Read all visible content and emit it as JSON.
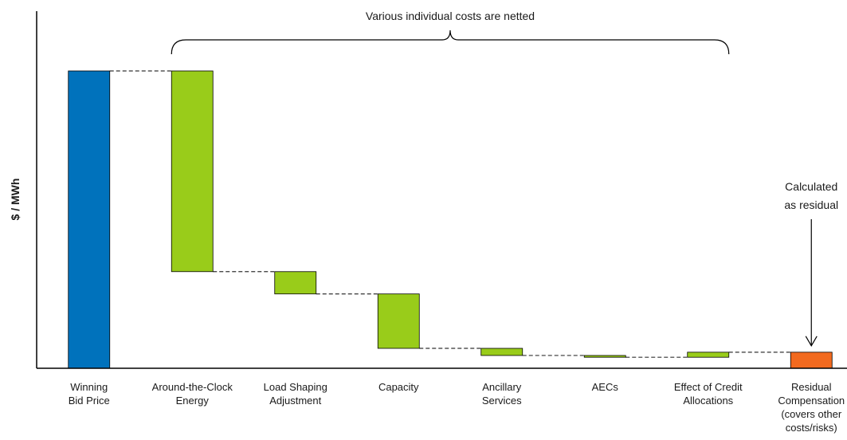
{
  "chart_data": {
    "type": "bar",
    "subtype": "waterfall",
    "title": "",
    "xlabel": "",
    "ylabel": "$ / MWh",
    "ylim": [
      0,
      100
    ],
    "grid": false,
    "legend": "none",
    "categories": [
      [
        "Winning",
        "Bid Price"
      ],
      [
        "Around-the-Clock",
        "Energy"
      ],
      [
        "Load Shaping",
        "Adjustment"
      ],
      [
        "Capacity"
      ],
      [
        "Ancillary",
        "Services"
      ],
      [
        "AECs"
      ],
      [
        "Effect of Credit",
        "Allocations"
      ],
      [
        "Residual",
        "Compensation",
        "(covers other",
        "costs/risks)"
      ]
    ],
    "bars": [
      {
        "kind": "total",
        "start": 0,
        "end": 100
      },
      {
        "kind": "decrease",
        "start": 100,
        "end": 32.5
      },
      {
        "kind": "decrease",
        "start": 32.5,
        "end": 25
      },
      {
        "kind": "decrease",
        "start": 25,
        "end": 6.7
      },
      {
        "kind": "decrease",
        "start": 6.7,
        "end": 4.3
      },
      {
        "kind": "decrease",
        "start": 4.3,
        "end": 3.7
      },
      {
        "kind": "increase",
        "start": 3.7,
        "end": 5.4
      },
      {
        "kind": "residual",
        "start": 0,
        "end": 5.4
      }
    ],
    "colors": {
      "total": "#0072bc",
      "decrease": "#99cc1a",
      "increase": "#99cc1a",
      "residual": "#f26a1f",
      "connector": "#333333",
      "axis": "#000000"
    },
    "annotations": {
      "brace_label": "Various individual costs are netted",
      "residual_label": [
        "Calculated",
        "as residual"
      ]
    }
  }
}
